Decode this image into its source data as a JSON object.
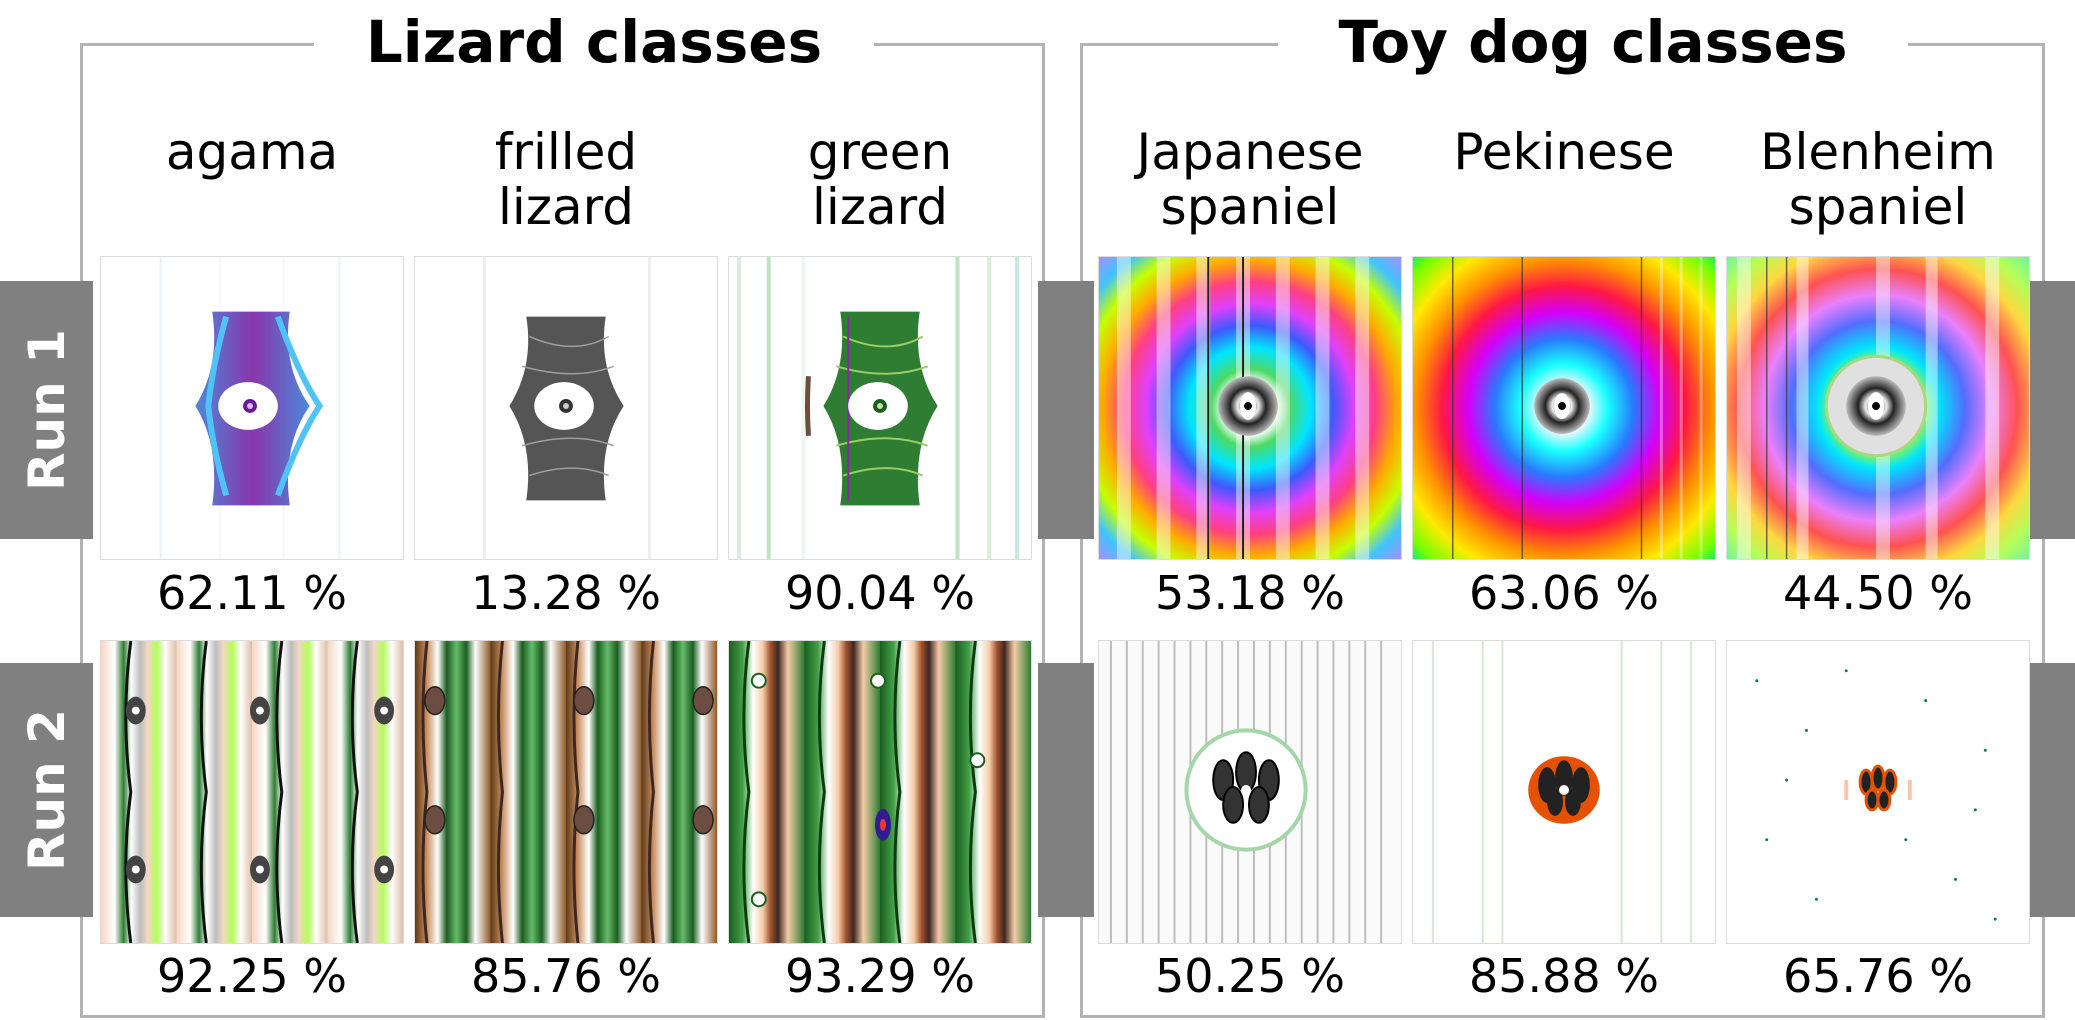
{
  "sections": [
    {
      "title": "Lizard classes",
      "classes": [
        "agama",
        "frilled\nlizard",
        "green\nlizard"
      ]
    },
    {
      "title": "Toy dog classes",
      "classes": [
        "Japanese\nspaniel",
        "Pekinese",
        "Blenheim\nspaniel"
      ]
    }
  ],
  "rows": [
    {
      "label": "Run 1",
      "scores": [
        "62.11 %",
        "13.28 %",
        "90.04 %",
        "53.18 %",
        "63.06 %",
        "44.50 %"
      ]
    },
    {
      "label": "Run 2",
      "scores": [
        "92.25 %",
        "85.76 %",
        "93.29 %",
        "50.25 %",
        "85.88 %",
        "65.76 %"
      ]
    }
  ],
  "colors": {
    "frame": "#b3b3b3",
    "tab": "#808080"
  }
}
